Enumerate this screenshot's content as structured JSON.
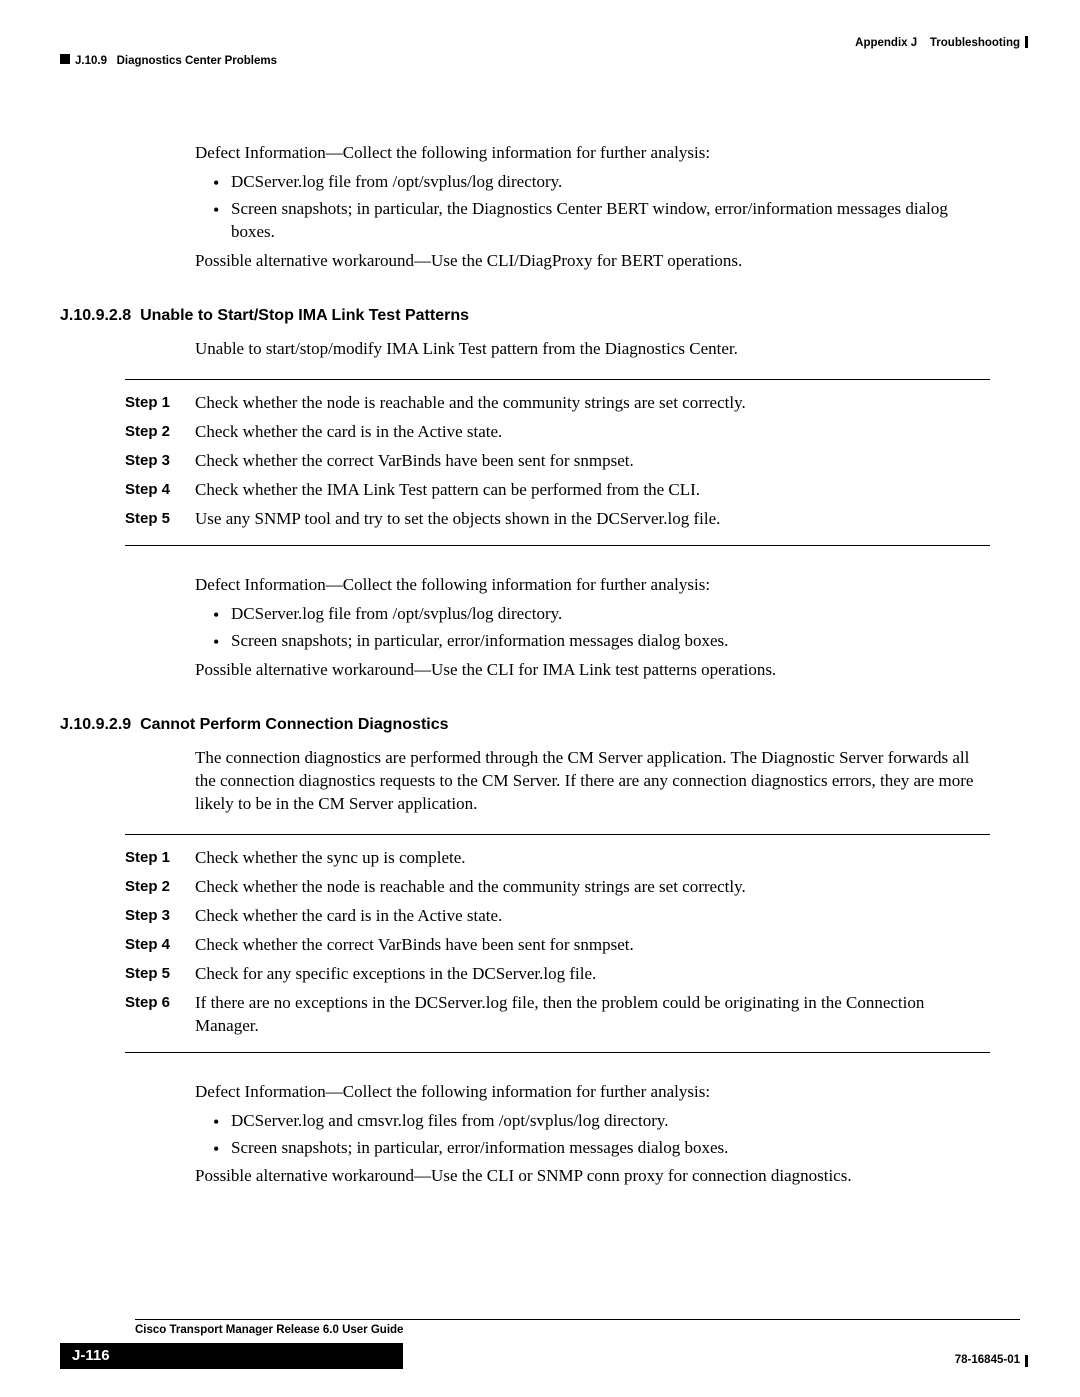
{
  "header": {
    "appendix": "Appendix J",
    "appendix_title": "Troubleshooting",
    "section_num": "J.10.9",
    "section_title": "Diagnostics Center Problems"
  },
  "block1": {
    "defect_intro": "Defect Information—Collect the following information for further analysis:",
    "bullets": [
      "DCServer.log file from /opt/svplus/log directory.",
      "Screen snapshots; in particular, the Diagnostics Center BERT window, error/information messages dialog boxes."
    ],
    "workaround": "Possible alternative workaround—Use the CLI/DiagProxy for BERT operations."
  },
  "section_a": {
    "heading_num": "J.10.9.2.8",
    "heading_text": "Unable to Start/Stop IMA Link Test Patterns",
    "intro": "Unable to start/stop/modify IMA Link Test pattern from the Diagnostics Center.",
    "steps": [
      "Check whether the node is reachable and the community strings are set correctly.",
      "Check whether the card is in the Active state.",
      "Check whether the correct VarBinds have been sent for snmpset.",
      "Check whether the IMA Link Test pattern can be performed from the CLI.",
      "Use any SNMP tool and try to set the objects shown in the DCServer.log file."
    ],
    "step_labels": [
      "Step 1",
      "Step 2",
      "Step 3",
      "Step 4",
      "Step 5"
    ],
    "defect_intro": "Defect Information—Collect the following information for further analysis:",
    "bullets": [
      "DCServer.log file from /opt/svplus/log directory.",
      "Screen snapshots; in particular, error/information messages dialog boxes."
    ],
    "workaround": "Possible alternative workaround—Use the CLI for IMA Link test patterns operations."
  },
  "section_b": {
    "heading_num": "J.10.9.2.9",
    "heading_text": "Cannot Perform Connection Diagnostics",
    "intro": "The connection diagnostics are performed through the CM Server application. The Diagnostic Server forwards all the connection diagnostics requests to the CM Server. If there are any connection diagnostics errors, they are more likely to be in the CM Server application.",
    "steps": [
      "Check whether the sync up is complete.",
      "Check whether the node is reachable and the community strings are set correctly.",
      "Check whether the card is in the Active state.",
      "Check whether the correct VarBinds have been sent for snmpset.",
      "Check for any specific exceptions in the DCServer.log file.",
      "If there are no exceptions in the DCServer.log file, then the problem could be originating in the Connection Manager."
    ],
    "step_labels": [
      "Step 1",
      "Step 2",
      "Step 3",
      "Step 4",
      "Step 5",
      "Step 6"
    ],
    "defect_intro": "Defect Information—Collect the following information for further analysis:",
    "bullets": [
      "DCServer.log and cmsvr.log files from /opt/svplus/log directory.",
      "Screen snapshots; in particular, error/information messages dialog boxes."
    ],
    "workaround": "Possible alternative workaround—Use the CLI or SNMP conn proxy for connection diagnostics."
  },
  "footer": {
    "guide_title": "Cisco Transport Manager Release 6.0 User Guide",
    "page_num": "J-116",
    "doc_code": "78-16845-01"
  }
}
